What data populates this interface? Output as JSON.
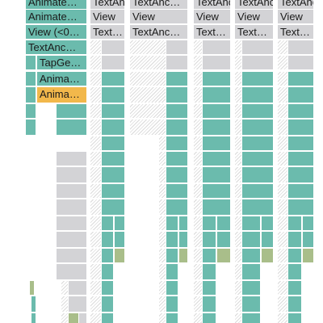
{
  "flamegraph": {
    "colors": {
      "teal": "#6bbbad",
      "grey": "#d3d3d6",
      "orange": "#f2b84b",
      "olive": "#a9be8a",
      "hatch": "#dadada"
    },
    "labeled_frames": [
      {
        "label": "Animate…",
        "color": "teal"
      },
      {
        "label": "TextAnc…",
        "color": "grey"
      },
      {
        "label": "TextAnc…",
        "color": "grey"
      },
      {
        "label": "TextAnc…",
        "color": "grey"
      },
      {
        "label": "TextAnc…",
        "color": "grey"
      },
      {
        "label": "TextAnc…",
        "color": "grey"
      },
      {
        "label": "Animate…",
        "color": "teal"
      },
      {
        "label": "View",
        "color": "grey"
      },
      {
        "label": "View",
        "color": "grey"
      },
      {
        "label": "View",
        "color": "grey"
      },
      {
        "label": "View",
        "color": "grey"
      },
      {
        "label": "View",
        "color": "grey"
      },
      {
        "label": "View (<0…",
        "color": "teal"
      },
      {
        "label": "Text…",
        "color": "grey"
      },
      {
        "label": "TextAnc…",
        "color": "grey"
      },
      {
        "label": "Text…",
        "color": "grey"
      },
      {
        "label": "Text…",
        "color": "grey"
      },
      {
        "label": "Text…",
        "color": "grey"
      },
      {
        "label": "TextAnc…",
        "color": "teal"
      },
      {
        "label": "TapGe…",
        "color": "teal"
      },
      {
        "label": "Anima…",
        "color": "teal"
      },
      {
        "label": "Anima…",
        "color": "orange"
      }
    ]
  }
}
